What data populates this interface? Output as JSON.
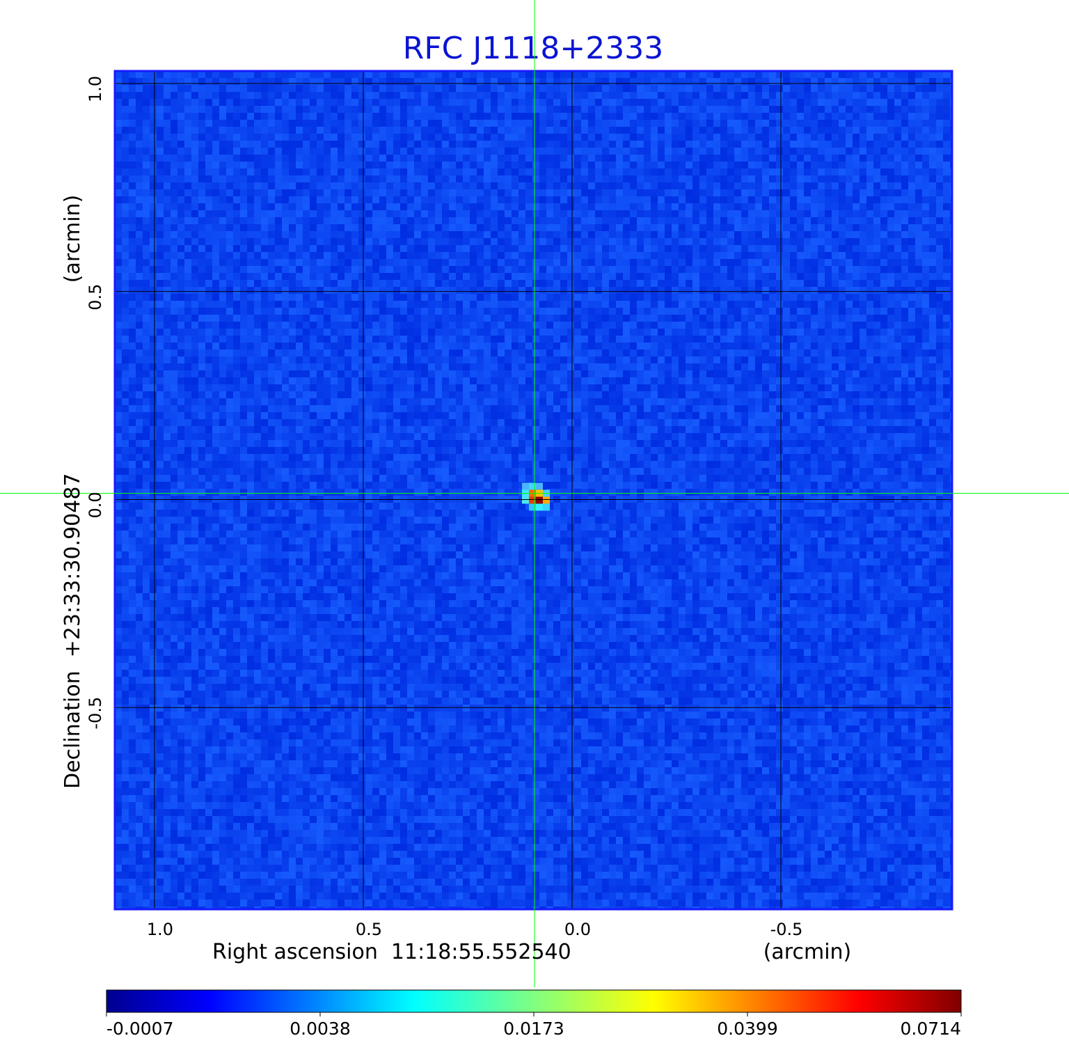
{
  "chart_data": {
    "type": "heatmap",
    "title": "RFC J1118+2333",
    "xlabel": "Right ascension  11:18:55.552540",
    "xunit": "(arcmin)",
    "ylabel": "Declination  +23:33:30.90487",
    "yunit": "(arcmin)",
    "xlim": [
      1.095,
      -0.91
    ],
    "ylim": [
      -0.985,
      1.03
    ],
    "x_ticks": [
      1.0,
      0.5,
      0.0,
      -0.5
    ],
    "x_tick_labels": [
      "1.0",
      "0.5",
      "0.0",
      "-0.5"
    ],
    "y_ticks": [
      1.0,
      0.5,
      0.0,
      -0.5
    ],
    "y_tick_labels": [
      "1.0",
      "0.5",
      "0.0",
      "-0.5"
    ],
    "grid": true,
    "source_peak": {
      "x": 0.085,
      "y": 0.01,
      "peak_value": 0.0714
    },
    "crosshair": {
      "x": 0.09,
      "y": 0.015,
      "color": "#00ff00"
    },
    "background_value": 0.0,
    "colorbar": {
      "tick_labels": [
        "-0.0007",
        "0.0038",
        "0.0173",
        "0.0399",
        "0.0714"
      ],
      "colormap": "jet"
    },
    "colors": {
      "title": "#0a14d2",
      "frame": "#1a1aff",
      "background_map": "#1a3cf5",
      "crosshair": "#00ff00",
      "grid": "#000000"
    }
  }
}
